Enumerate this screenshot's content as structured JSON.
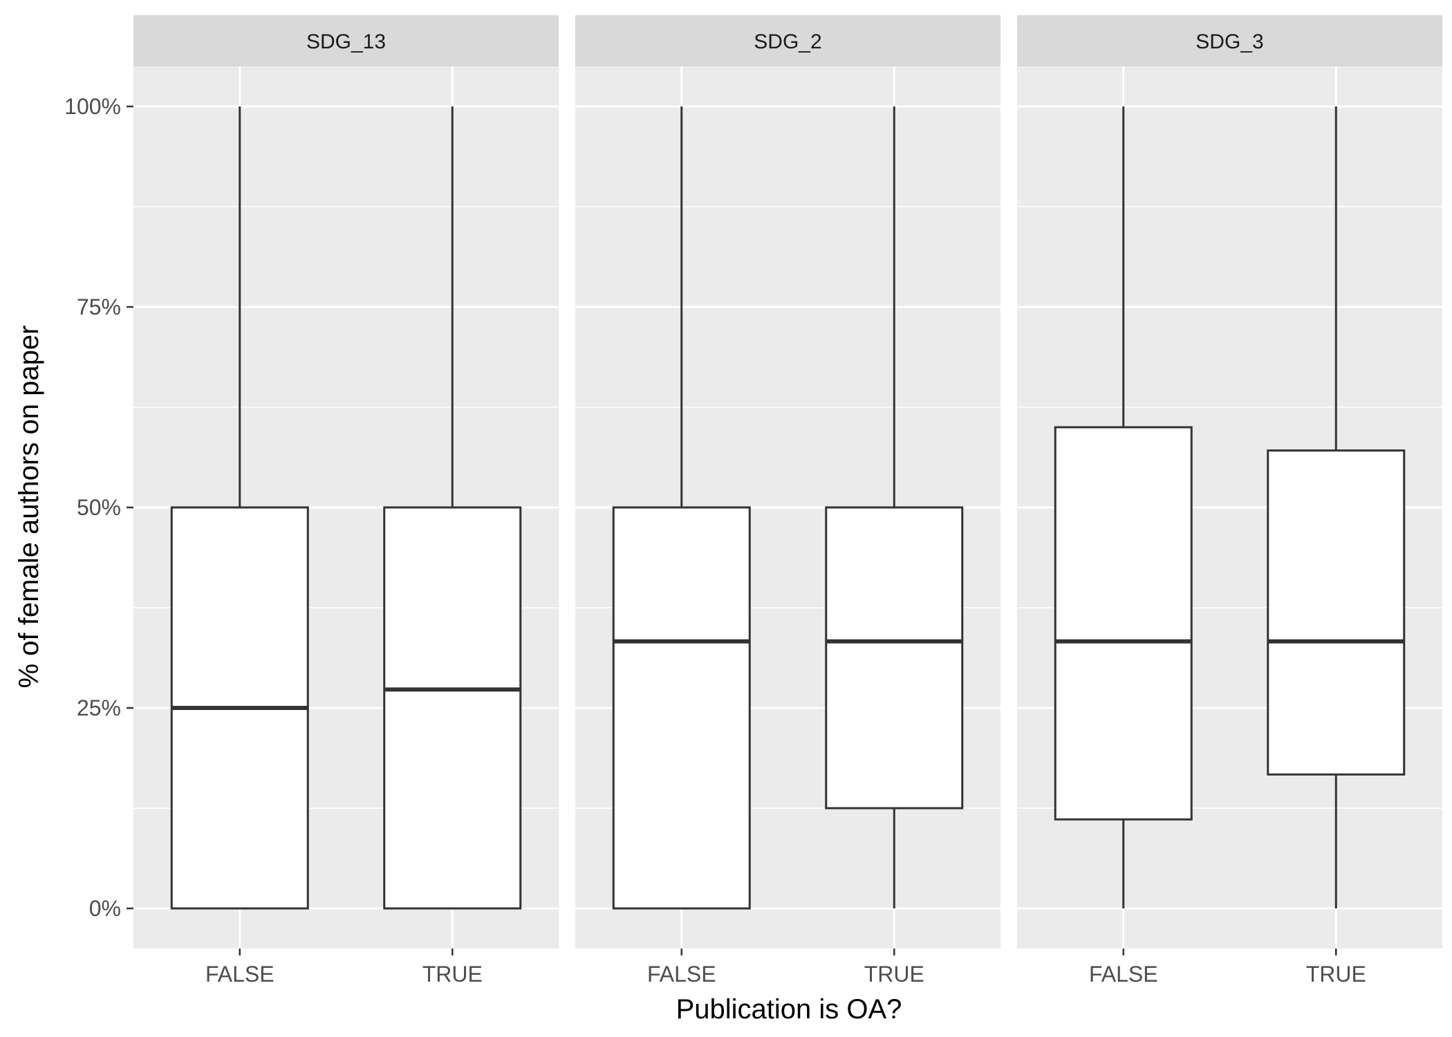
{
  "chart_data": {
    "type": "boxplot",
    "xlabel": "Publication is OA?",
    "ylabel": "% of female authors on paper",
    "ylim": [
      -0.05,
      1.05
    ],
    "y_ticks": [
      0,
      0.25,
      0.5,
      0.75,
      1.0
    ],
    "y_tick_labels": [
      "0%",
      "25%",
      "50%",
      "75%",
      "100%"
    ],
    "categories": [
      "FALSE",
      "TRUE"
    ],
    "grid": true,
    "facets": [
      {
        "label": "SDG_13",
        "boxes": [
          {
            "category": "FALSE",
            "min": 0,
            "q1": 0,
            "median": 0.25,
            "q3": 0.5,
            "max": 1.0
          },
          {
            "category": "TRUE",
            "min": 0,
            "q1": 0,
            "median": 0.273,
            "q3": 0.5,
            "max": 1.0
          }
        ]
      },
      {
        "label": "SDG_2",
        "boxes": [
          {
            "category": "FALSE",
            "min": 0,
            "q1": 0,
            "median": 0.333,
            "q3": 0.5,
            "max": 1.0
          },
          {
            "category": "TRUE",
            "min": 0,
            "q1": 0.125,
            "median": 0.333,
            "q3": 0.5,
            "max": 1.0
          }
        ]
      },
      {
        "label": "SDG_3",
        "boxes": [
          {
            "category": "FALSE",
            "min": 0,
            "q1": 0.111,
            "median": 0.333,
            "q3": 0.6,
            "max": 1.0
          },
          {
            "category": "TRUE",
            "min": 0,
            "q1": 0.167,
            "median": 0.333,
            "q3": 0.571,
            "max": 1.0
          }
        ]
      }
    ],
    "colors": {
      "panel_background": "#ebebeb",
      "strip_background": "#d9d9d9",
      "gridline": "#ffffff",
      "box_fill": "#ffffff",
      "box_stroke": "#333333"
    }
  }
}
